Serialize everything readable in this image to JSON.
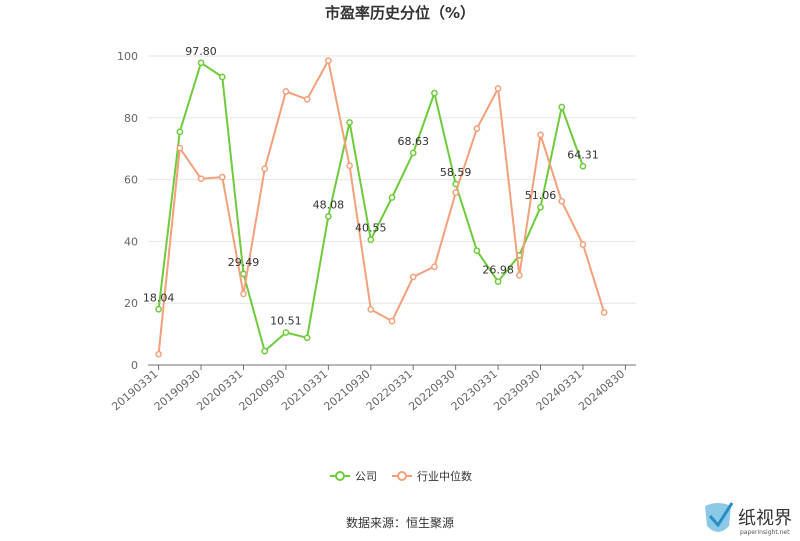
{
  "chart_data": {
    "type": "line",
    "title": "市盈率历史分位（%）",
    "xlabel": "",
    "ylabel": "",
    "ylim": [
      0,
      100
    ],
    "y_ticks": [
      0,
      20,
      40,
      60,
      80,
      100
    ],
    "grid": true,
    "legend_position": "bottom",
    "x": [
      "20190331",
      "20190630",
      "20190930",
      "20191231",
      "20200331",
      "20200630",
      "20200930",
      "20201231",
      "20210331",
      "20210630",
      "20210930",
      "20211231",
      "20220331",
      "20220630",
      "20220930",
      "20221231",
      "20230331",
      "20230630",
      "20230930",
      "20231231",
      "20240331",
      "20240630",
      "20240830"
    ],
    "x_tick_labels": [
      "20190331",
      "20190930",
      "20200331",
      "20200930",
      "20210331",
      "20210930",
      "20220331",
      "20220930",
      "20230331",
      "20230930",
      "20240331",
      "20240830"
    ],
    "series": [
      {
        "name": "公司",
        "color": "#6ecb3c",
        "values": [
          18.04,
          75.5,
          97.8,
          93.2,
          29.49,
          4.5,
          10.51,
          8.8,
          48.08,
          78.5,
          40.55,
          54.2,
          68.63,
          88.0,
          58.59,
          37.0,
          26.98,
          35.5,
          51.06,
          83.5,
          64.31,
          null,
          null
        ],
        "data_labels": [
          {
            "index": 0,
            "text": "18.04"
          },
          {
            "index": 2,
            "text": "97.80"
          },
          {
            "index": 4,
            "text": "29.49"
          },
          {
            "index": 6,
            "text": "10.51"
          },
          {
            "index": 8,
            "text": "48.08"
          },
          {
            "index": 10,
            "text": "40.55"
          },
          {
            "index": 12,
            "text": "68.63"
          },
          {
            "index": 14,
            "text": "58.59"
          },
          {
            "index": 16,
            "text": "26.98"
          },
          {
            "index": 18,
            "text": "51.06"
          },
          {
            "index": 20,
            "text": "64.31"
          }
        ]
      },
      {
        "name": "行业中位数",
        "color": "#f4a07a",
        "values": [
          3.5,
          70.2,
          60.3,
          60.8,
          23.0,
          63.5,
          88.5,
          86.0,
          98.5,
          64.5,
          18.0,
          14.2,
          28.5,
          31.8,
          55.8,
          76.5,
          89.5,
          29.0,
          74.5,
          53.0,
          39.0,
          17.0,
          null
        ]
      }
    ]
  },
  "footer": {
    "source": "数据来源：恒生聚源"
  },
  "watermark": {
    "name": "纸视界",
    "url": "paperinsight.net"
  }
}
